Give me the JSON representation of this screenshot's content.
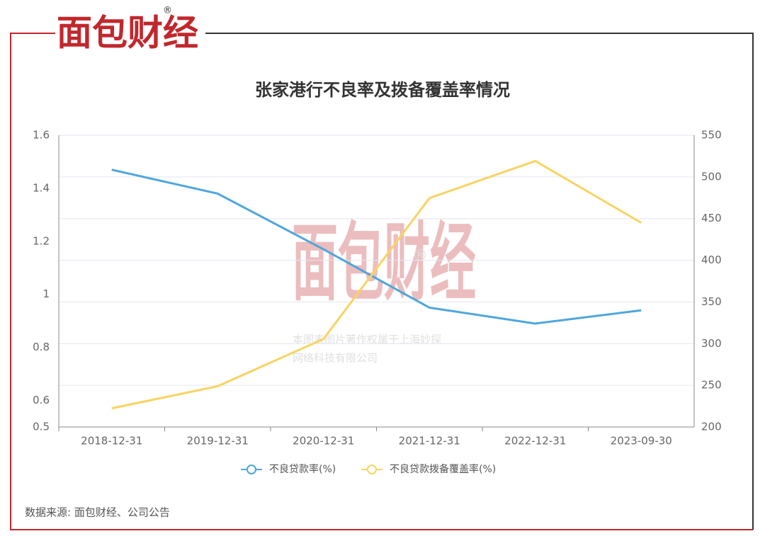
{
  "logo": "面包财经",
  "logo_mark": "®",
  "watermark": {
    "logo": "面包财经",
    "mark": "®",
    "line1": "本图表图片著作权属于上海妙探",
    "line2": "网络科技有限公司"
  },
  "source": "数据来源: 面包财经、公司公告",
  "chart_data": {
    "type": "line",
    "title": "张家港行不良率及拨备覆盖率情况",
    "categories": [
      "2018-12-31",
      "2019-12-31",
      "2020-12-31",
      "2021-12-31",
      "2022-12-31",
      "2023-09-30"
    ],
    "series": [
      {
        "name": "不良贷款率(%)",
        "color": "#4ea6dc",
        "values": [
          1.47,
          1.38,
          1.17,
          0.95,
          0.89,
          0.94
        ]
      },
      {
        "name": "不良贷款拨备覆盖率(%)",
        "color": "#f7d463",
        "axis": "y2",
        "values": [
          222.38,
          248.91,
          305.6,
          474.62,
          519.15,
          445
        ]
      }
    ],
    "ylim": [
      0.5,
      1.6
    ],
    "yticks": [
      0.5,
      0.6,
      0.8,
      1,
      1.2,
      1.4,
      1.6
    ],
    "y2lim": [
      200,
      550
    ],
    "y2ticks": [
      200,
      250,
      300,
      350,
      400,
      450,
      500,
      550
    ],
    "grid": true,
    "legend": "bottom"
  }
}
